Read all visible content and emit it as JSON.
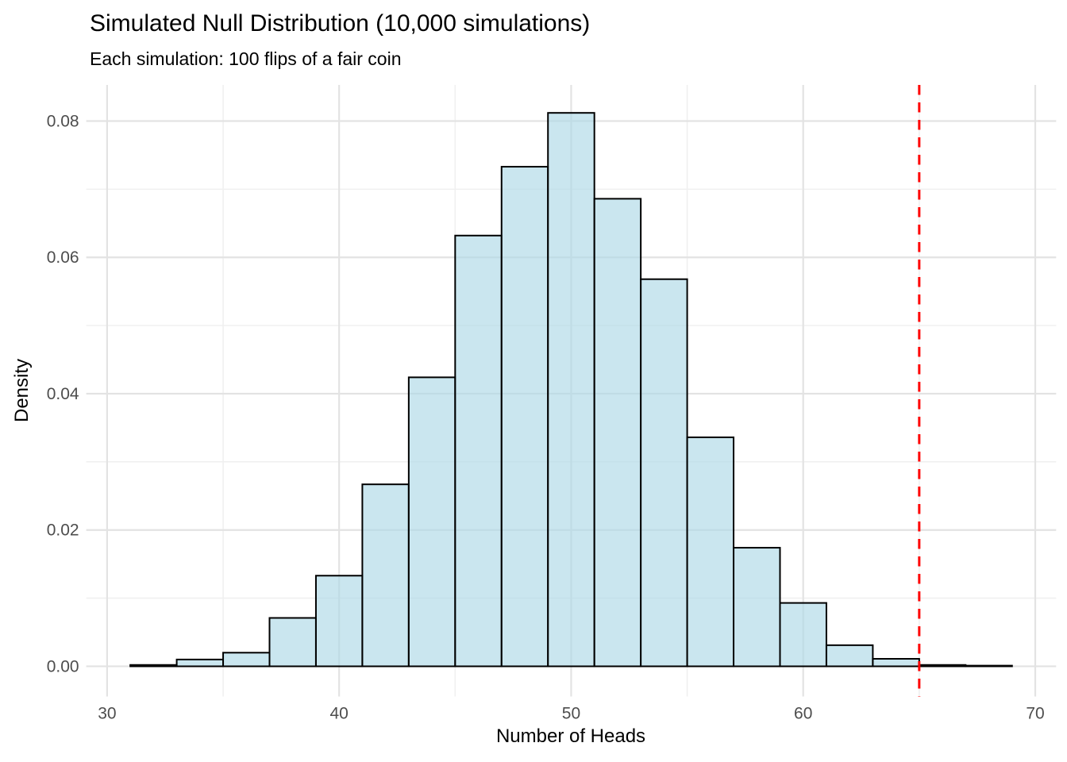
{
  "chart_data": {
    "type": "bar",
    "subtype": "histogram",
    "title": "Simulated Null Distribution (10,000 simulations)",
    "subtitle": "Each simulation: 100 flips of a fair coin",
    "xlabel": "Number of Heads",
    "ylabel": "Density",
    "bin_width": 2,
    "bins": [
      {
        "x0": 31,
        "x1": 33,
        "density": 0.0002
      },
      {
        "x0": 33,
        "x1": 35,
        "density": 0.001
      },
      {
        "x0": 35,
        "x1": 37,
        "density": 0.002
      },
      {
        "x0": 37,
        "x1": 39,
        "density": 0.0071
      },
      {
        "x0": 39,
        "x1": 41,
        "density": 0.0133
      },
      {
        "x0": 41,
        "x1": 43,
        "density": 0.0267
      },
      {
        "x0": 43,
        "x1": 45,
        "density": 0.0424
      },
      {
        "x0": 45,
        "x1": 47,
        "density": 0.0632
      },
      {
        "x0": 47,
        "x1": 49,
        "density": 0.0733
      },
      {
        "x0": 49,
        "x1": 51,
        "density": 0.0812
      },
      {
        "x0": 51,
        "x1": 53,
        "density": 0.0686
      },
      {
        "x0": 53,
        "x1": 55,
        "density": 0.0568
      },
      {
        "x0": 55,
        "x1": 57,
        "density": 0.0336
      },
      {
        "x0": 57,
        "x1": 59,
        "density": 0.0174
      },
      {
        "x0": 59,
        "x1": 61,
        "density": 0.0093
      },
      {
        "x0": 61,
        "x1": 63,
        "density": 0.0031
      },
      {
        "x0": 63,
        "x1": 65,
        "density": 0.0011
      },
      {
        "x0": 65,
        "x1": 67,
        "density": 0.0002
      },
      {
        "x0": 67,
        "x1": 69,
        "density": 0.0001
      }
    ],
    "x_ticks": {
      "values": [
        30,
        40,
        50,
        60,
        70
      ],
      "labels": [
        "30",
        "40",
        "50",
        "60",
        "70"
      ]
    },
    "y_ticks": {
      "values": [
        0.0,
        0.02,
        0.04,
        0.06,
        0.08
      ],
      "labels": [
        "0.00",
        "0.02",
        "0.04",
        "0.06",
        "0.08"
      ]
    },
    "x_minor_ticks": [
      35,
      45,
      55,
      65
    ],
    "y_minor_ticks": [
      0.01,
      0.03,
      0.05,
      0.07
    ],
    "xlim": [
      29.1,
      70.9
    ],
    "ylim": [
      -0.00443,
      0.0853
    ],
    "grid": true,
    "legend": "none",
    "observed_line": {
      "x": 65,
      "style": "dashed",
      "color": "#FF0000"
    },
    "colors": {
      "bar_fill": "#ADD8E6",
      "bar_fill_alpha": 0.65,
      "bar_stroke": "#000000",
      "grid_major": "#E3E3E3",
      "grid_minor": "#F0F0F0",
      "tick_label": "#4D4D4D",
      "text": "#000000",
      "background": "#FFFFFF"
    }
  }
}
